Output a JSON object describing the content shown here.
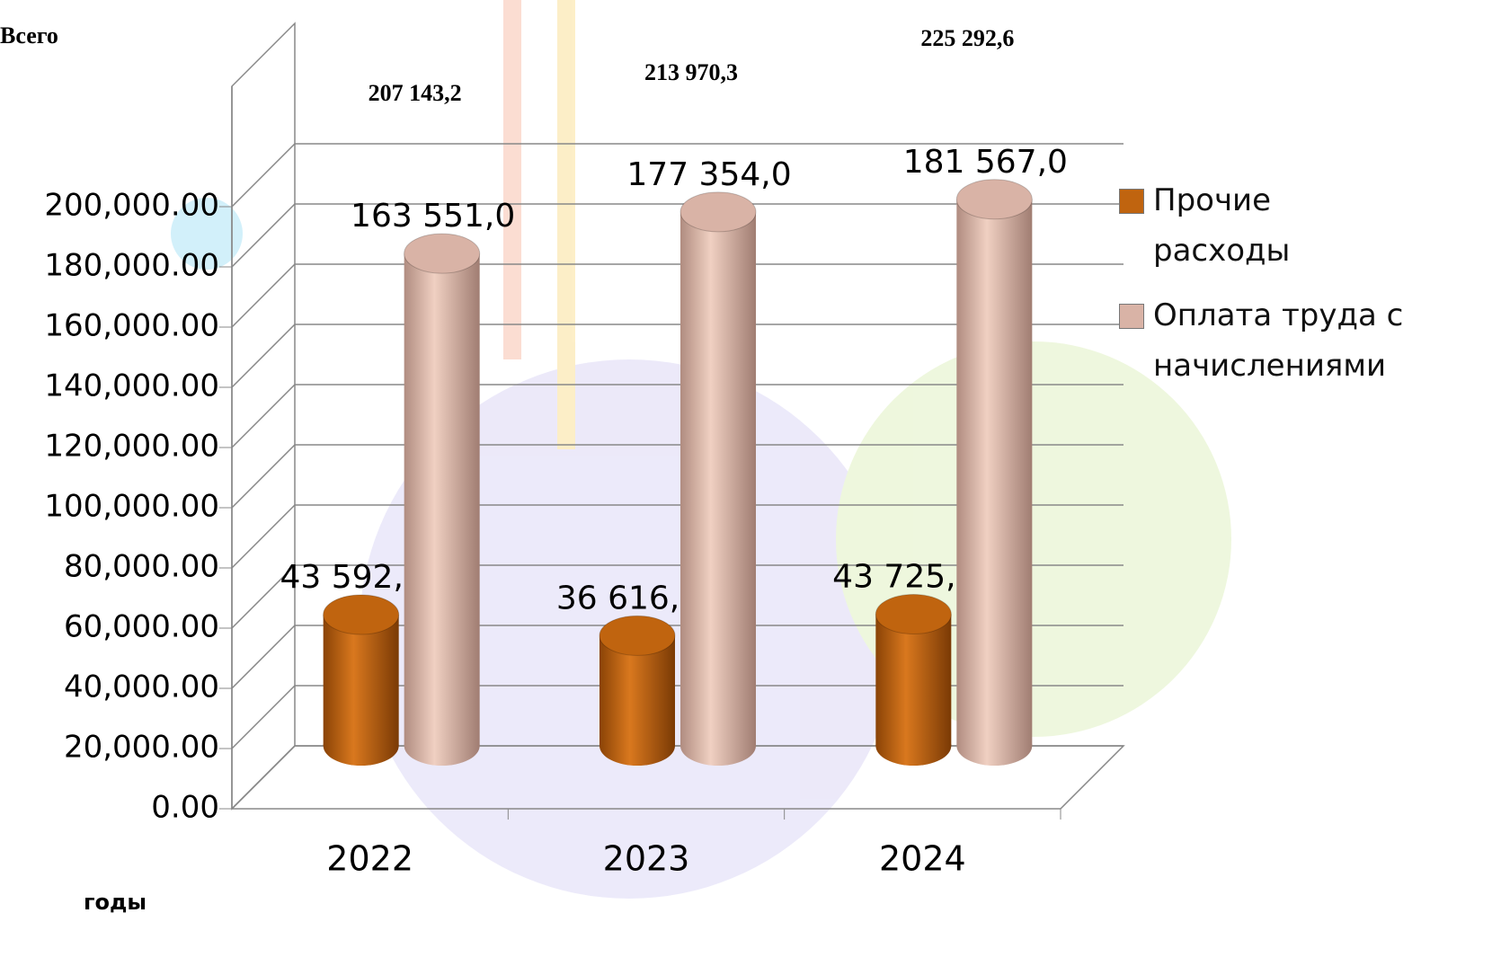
{
  "chart_data": {
    "type": "bar3d",
    "ylabel": "Всего",
    "xlabel": "годы",
    "categories": [
      "2022",
      "2023",
      "2024"
    ],
    "series": [
      {
        "name": "Прочие расходы",
        "color": "#c0640f",
        "values": [
          43592.2,
          36616.3,
          43725.6
        ],
        "value_labels": [
          "43 592,2",
          "36 616,3",
          "43 725,6"
        ]
      },
      {
        "name": "Оплата труда с начислениями",
        "color": "#d9b3a6",
        "values": [
          163551.0,
          177354.0,
          181567.0
        ],
        "value_labels": [
          "163 551,0",
          "177 354,0",
          "181 567,0"
        ]
      }
    ],
    "totals": {
      "values": [
        207143.2,
        213970.3,
        225292.6
      ],
      "value_labels": [
        "207 143,2",
        "213 970,3",
        "225 292,6"
      ]
    },
    "ylim": [
      0,
      240000
    ],
    "yticks": [
      {
        "value": 0,
        "label": "0.00"
      },
      {
        "value": 20000,
        "label": "20,000.00"
      },
      {
        "value": 40000,
        "label": "40,000.00"
      },
      {
        "value": 60000,
        "label": "60,000.00"
      },
      {
        "value": 80000,
        "label": "80,000.00"
      },
      {
        "value": 100000,
        "label": "100,000.00"
      },
      {
        "value": 120000,
        "label": "120,000.00"
      },
      {
        "value": 140000,
        "label": "140,000.00"
      },
      {
        "value": 160000,
        "label": "160,000.00"
      },
      {
        "value": 180000,
        "label": "180,000.00"
      },
      {
        "value": 200000,
        "label": "200,000.00"
      }
    ],
    "grid": true,
    "legend": "right"
  }
}
